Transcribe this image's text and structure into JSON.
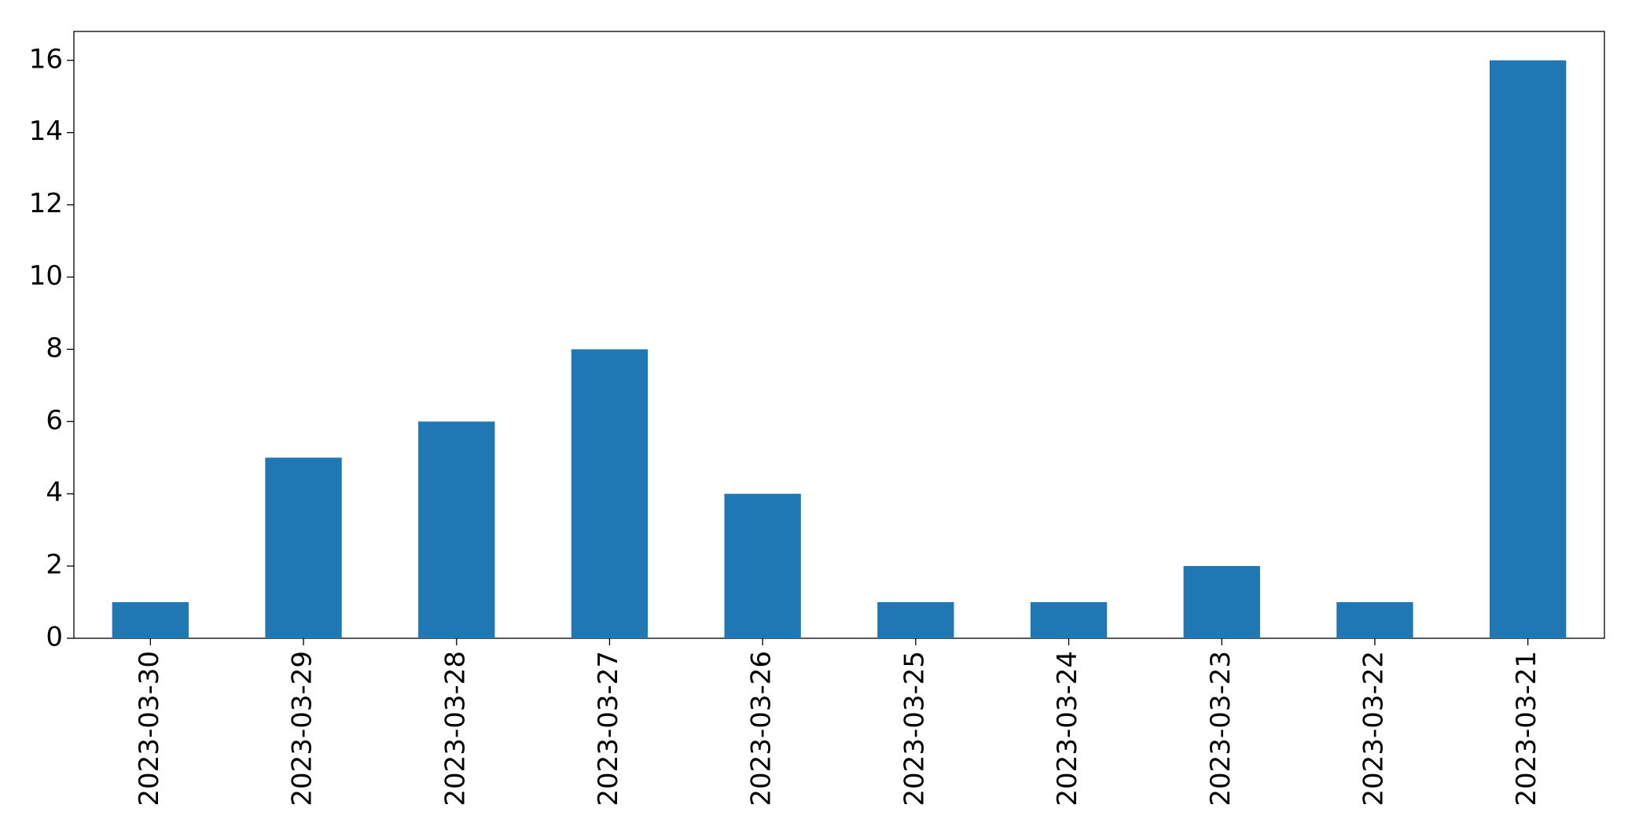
{
  "chart_data": {
    "type": "bar",
    "categories": [
      "2023-03-30",
      "2023-03-29",
      "2023-03-28",
      "2023-03-27",
      "2023-03-26",
      "2023-03-25",
      "2023-03-24",
      "2023-03-23",
      "2023-03-22",
      "2023-03-21"
    ],
    "values": [
      1,
      5,
      6,
      8,
      4,
      1,
      1,
      2,
      1,
      16
    ],
    "color": "#1f77b4",
    "ylim": [
      0,
      16.8
    ],
    "yticks": [
      0,
      2,
      4,
      6,
      8,
      10,
      12,
      14,
      16
    ],
    "grid": false
  }
}
